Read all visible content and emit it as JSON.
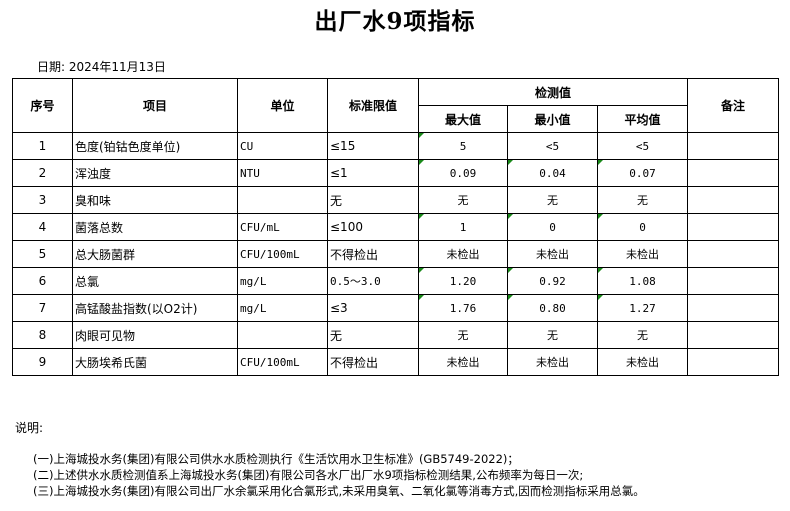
{
  "title": "出厂水9项指标",
  "date": "日期: 2024年11月13日",
  "table": {
    "headers": {
      "seq": "序号",
      "item": "项目",
      "unit": "单位",
      "limit": "标准限值",
      "detected": "检测值",
      "max": "最大值",
      "min": "最小值",
      "avg": "平均值",
      "remark": "备注"
    },
    "rows": [
      {
        "seq": "1",
        "item": "色度(铂钴色度单位)",
        "unit": "CU",
        "limit": "≤15",
        "max": "5",
        "min": "<5",
        "avg": "<5",
        "remark": ""
      },
      {
        "seq": "2",
        "item": "浑浊度",
        "unit": "NTU",
        "limit": "≤1",
        "max": "0.09",
        "min": "0.04",
        "avg": "0.07",
        "remark": ""
      },
      {
        "seq": "3",
        "item": "臭和味",
        "unit": "",
        "limit": "无",
        "max": "无",
        "min": "无",
        "avg": "无",
        "remark": ""
      },
      {
        "seq": "4",
        "item": "菌落总数",
        "unit": "CFU/mL",
        "limit": "≤100",
        "max": "1",
        "min": "0",
        "avg": "0",
        "remark": ""
      },
      {
        "seq": "5",
        "item": "总大肠菌群",
        "unit": "CFU/100mL",
        "limit": "不得检出",
        "max": "未检出",
        "min": "未检出",
        "avg": "未检出",
        "remark": ""
      },
      {
        "seq": "6",
        "item": "总氯",
        "unit": "mg/L",
        "limit": "0.5～3.0",
        "max": "1.20",
        "min": "0.92",
        "avg": "1.08",
        "remark": ""
      },
      {
        "seq": "7",
        "item": "高锰酸盐指数(以O2计)",
        "unit": "mg/L",
        "limit": "≤3",
        "max": "1.76",
        "min": "0.80",
        "avg": "1.27",
        "remark": ""
      },
      {
        "seq": "8",
        "item": "肉眼可见物",
        "unit": "",
        "limit": "无",
        "max": "无",
        "min": "无",
        "avg": "无",
        "remark": ""
      },
      {
        "seq": "9",
        "item": "大肠埃希氏菌",
        "unit": "CFU/100mL",
        "limit": "不得检出",
        "max": "未检出",
        "min": "未检出",
        "avg": "未检出",
        "remark": ""
      }
    ]
  },
  "notes": {
    "label": "说明:",
    "lines": [
      "(一)上海城投水务(集团)有限公司供水水质检测执行《生活饮用水卫生标准》(GB5749-2022)；",
      "(二)上述供水水质检测值系上海城投水务(集团)有限公司各水厂出厂水9项指标检测结果,公布频率为每日一次;",
      "(三)上海城投水务(集团)有限公司出厂水余氯采用化合氯形式,未采用臭氧、二氧化氯等消毒方式,因而检测指标采用总氯。"
    ]
  },
  "colors": {
    "error_marker": "#1a8a1a"
  }
}
